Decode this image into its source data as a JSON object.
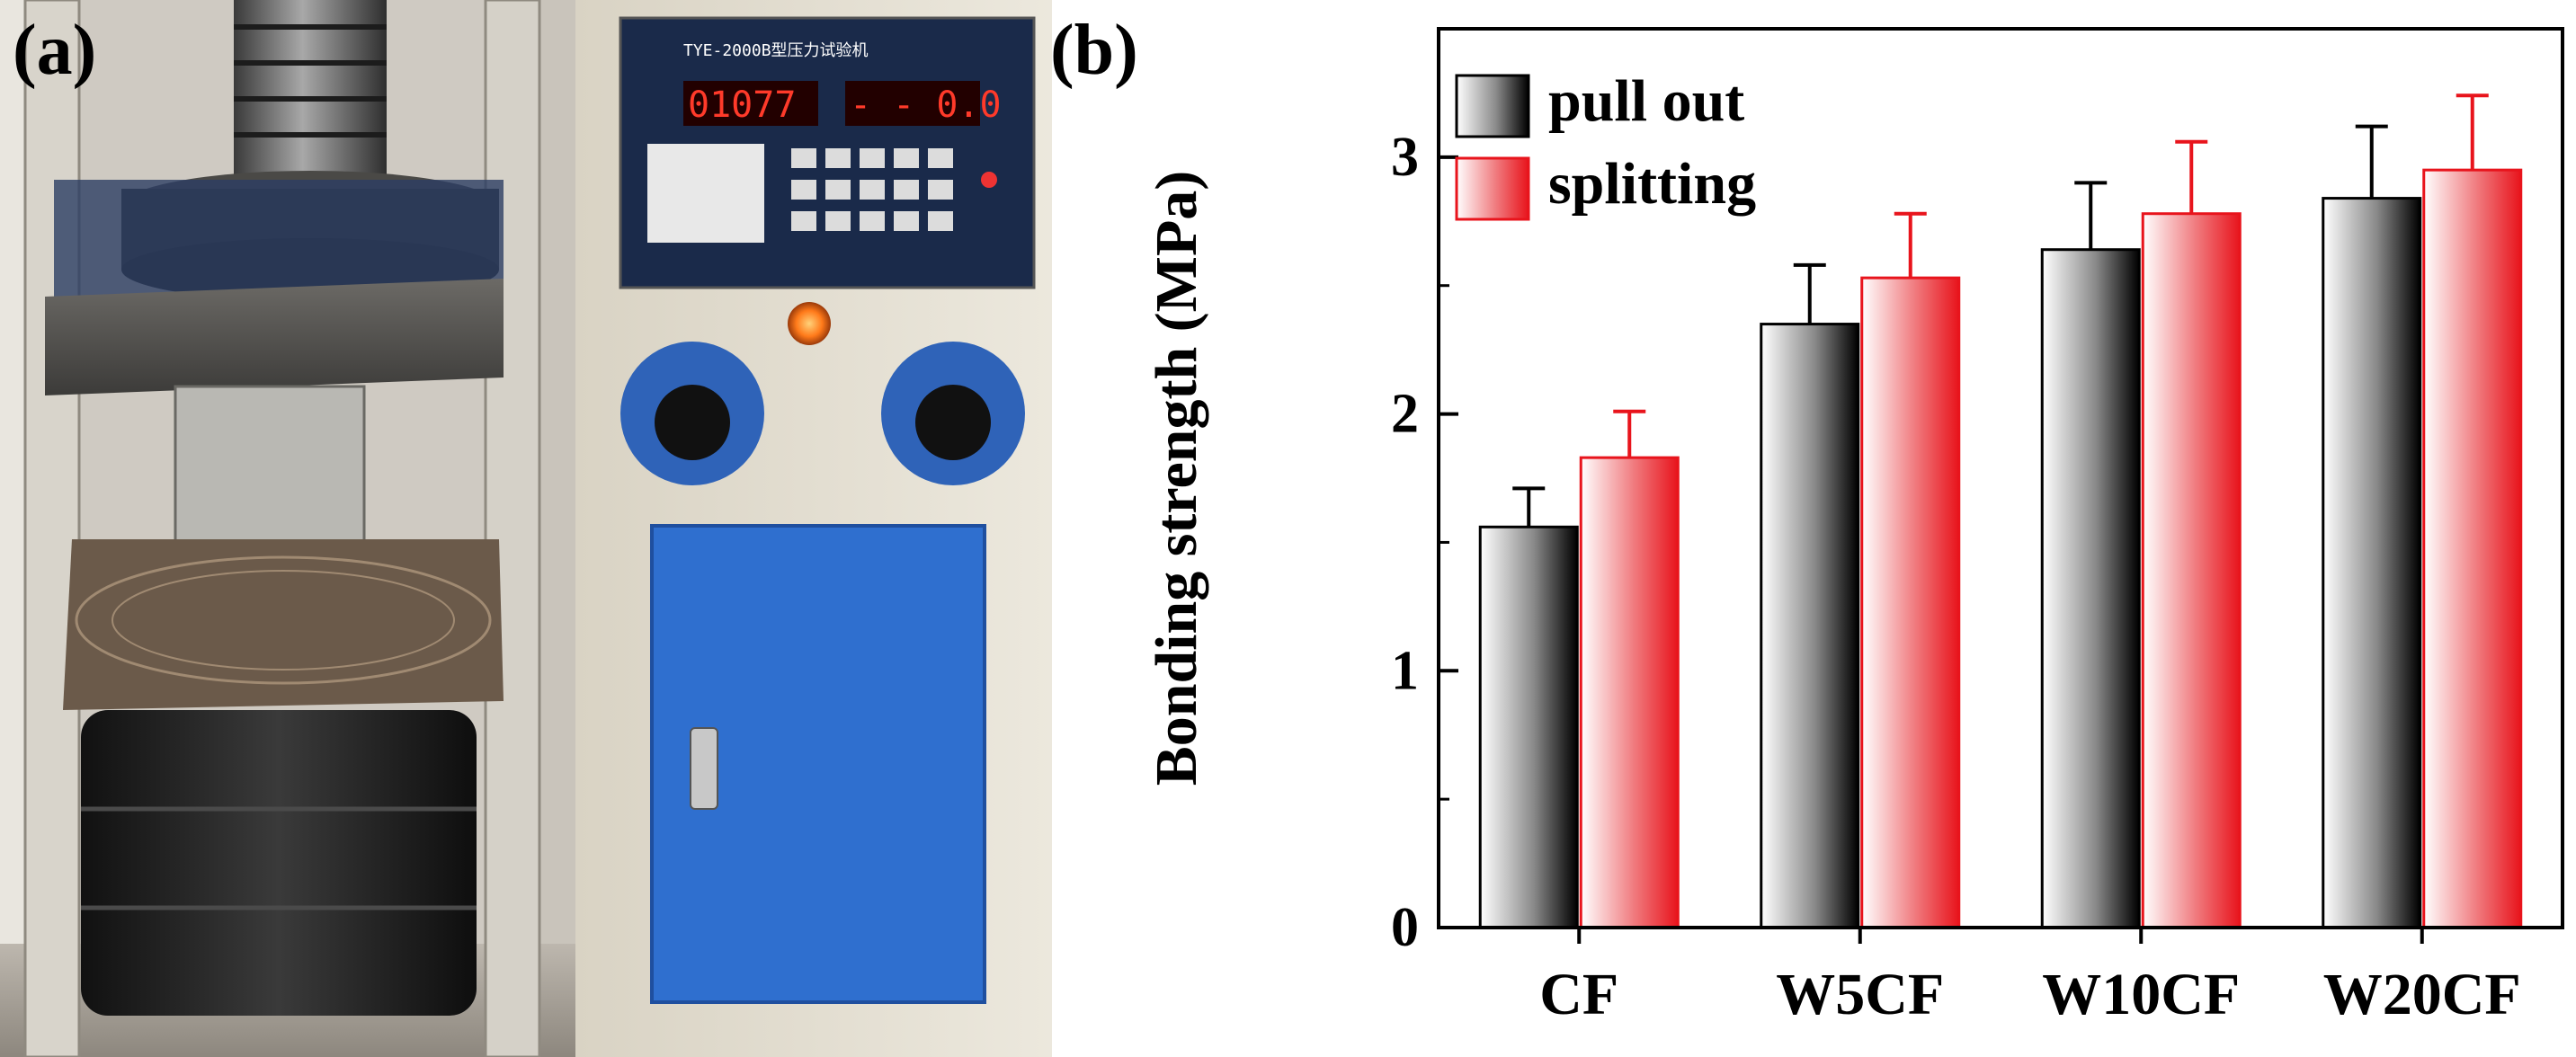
{
  "panel_a": {
    "label": "(a)",
    "machine_display": {
      "left": "01077",
      "right": "- - 0.0"
    },
    "machine_name": "TYE-2000B型压力试验机"
  },
  "panel_b": {
    "label": "(b)"
  },
  "colors": {
    "pull_out": "#000000",
    "splitting": "#e8141c"
  },
  "chart_data": {
    "type": "bar",
    "title": "",
    "xlabel": "",
    "ylabel": "Bonding strength (MPa)",
    "ylim": [
      0,
      3.5
    ],
    "yticks": [
      0,
      1,
      2,
      3
    ],
    "categories": [
      "CF",
      "W5CF",
      "W10CF",
      "W20CF"
    ],
    "series": [
      {
        "name": "pull out",
        "values": [
          1.56,
          2.35,
          2.64,
          2.84
        ],
        "errors": [
          0.15,
          0.23,
          0.26,
          0.28
        ]
      },
      {
        "name": "splitting",
        "values": [
          1.83,
          2.53,
          2.78,
          2.95
        ],
        "errors": [
          0.18,
          0.25,
          0.28,
          0.29
        ]
      }
    ],
    "legend": "top-left",
    "grid": false
  }
}
